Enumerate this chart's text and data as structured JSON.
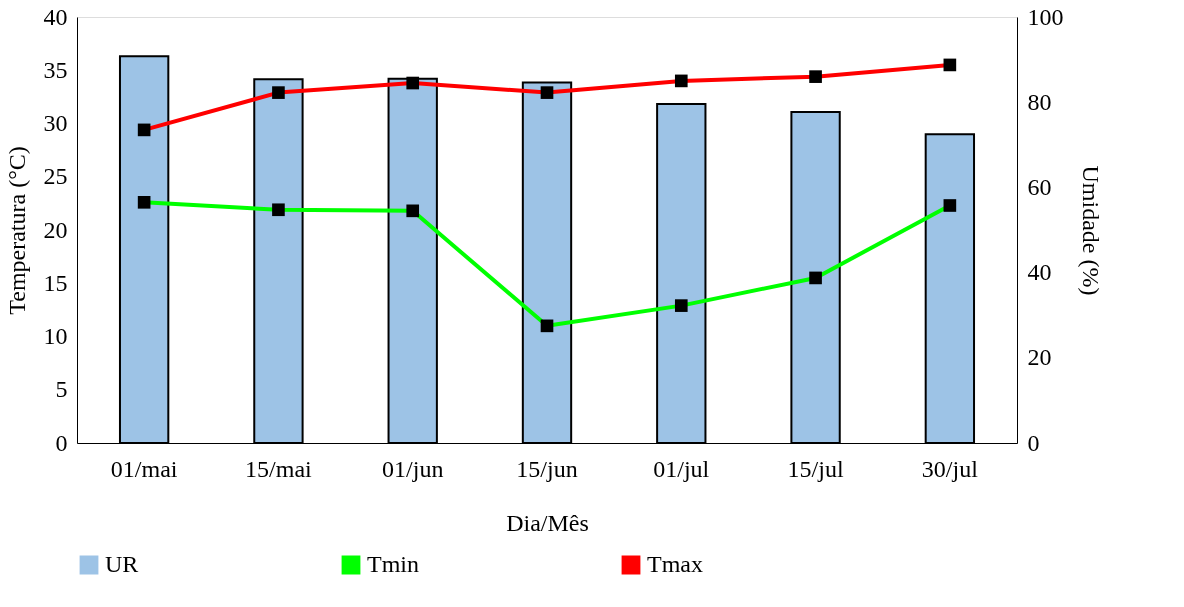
{
  "chart_data": {
    "type": "bar",
    "categories": [
      "01/mai",
      "15/mai",
      "01/jun",
      "15/jun",
      "01/jul",
      "15/jul",
      "30/jul"
    ],
    "xlabel": "Dia/Mês",
    "ylabel": "Temperatura (°C)",
    "y2label": "Umidade (%)",
    "ylim": [
      0,
      40
    ],
    "yticks": [
      0,
      5,
      10,
      15,
      20,
      25,
      30,
      35,
      40
    ],
    "y2lim": [
      0,
      100
    ],
    "y2ticks": [
      0,
      20,
      40,
      60,
      80,
      100
    ],
    "grid": false,
    "legend": "bottom",
    "marker": "square",
    "line_style": "solid",
    "series": [
      {
        "name": "UR",
        "axis": "y2",
        "color": "#9dc3e6",
        "values": [
          90.8,
          85.4,
          85.5,
          84.6,
          79.6,
          77.7,
          72.5
        ]
      },
      {
        "name": "Tmin",
        "type": "line",
        "color": "#00ff00",
        "values": [
          22.6,
          21.9,
          21.8,
          11.0,
          12.9,
          15.5,
          22.3
        ]
      },
      {
        "name": "Tmax",
        "type": "line",
        "color": "#ff0000",
        "values": [
          29.4,
          32.9,
          33.8,
          32.9,
          34.0,
          34.4,
          35.5
        ]
      }
    ]
  }
}
